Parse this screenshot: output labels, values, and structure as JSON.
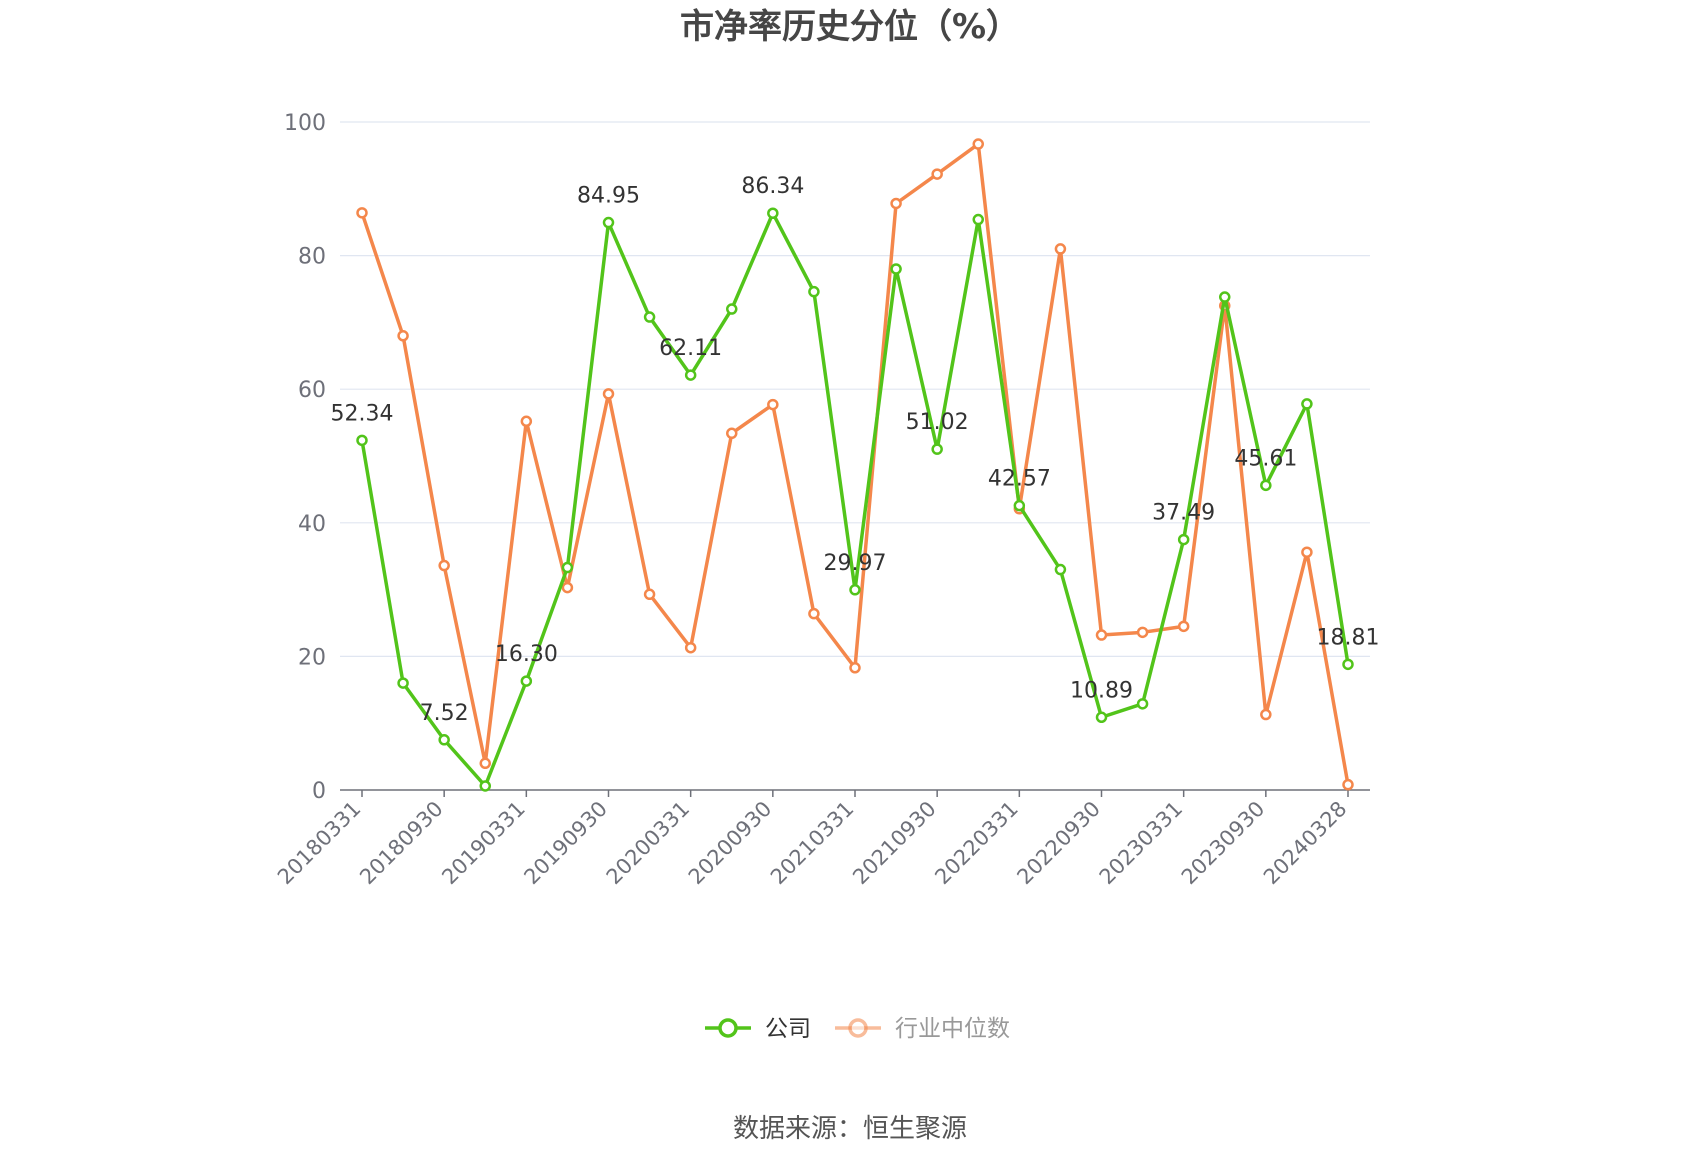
{
  "chart_data": {
    "type": "line",
    "title": "市净率历史分位（%）",
    "source": "数据来源：恒生聚源",
    "ylim": [
      0,
      100
    ],
    "yticks": [
      0,
      20,
      40,
      60,
      80,
      100
    ],
    "x": [
      "20180331",
      "20180630",
      "20180930",
      "20181231",
      "20190331",
      "20190630",
      "20190930",
      "20191231",
      "20200331",
      "20200630",
      "20200930",
      "20201231",
      "20210331",
      "20210630",
      "20210930",
      "20211231",
      "20220331",
      "20220630",
      "20220930",
      "20221231",
      "20230331",
      "20230630",
      "20230930",
      "20231231",
      "20240328"
    ],
    "xtick_labels": [
      "20180331",
      "20180930",
      "20190331",
      "20190930",
      "20200331",
      "20200930",
      "20210331",
      "20210930",
      "20220331",
      "20220930",
      "20230331",
      "20230930",
      "20240328"
    ],
    "grid": true,
    "legend_position": "bottom-center",
    "series": [
      {
        "name": "公司",
        "color": "#52c41a",
        "values": [
          52.34,
          16.0,
          7.52,
          0.6,
          16.3,
          33.3,
          84.95,
          70.8,
          62.11,
          72.0,
          86.34,
          74.6,
          29.97,
          78.0,
          51.02,
          85.4,
          42.57,
          33.0,
          10.89,
          12.9,
          37.49,
          73.8,
          45.61,
          57.8,
          18.81
        ],
        "labels": [
          "52.34",
          "",
          "7.52",
          "",
          "16.30",
          "",
          "84.95",
          "",
          "62.11",
          "",
          "86.34",
          "",
          "29.97",
          "",
          "51.02",
          "",
          "42.57",
          "",
          "10.89",
          "",
          "37.49",
          "",
          "45.61",
          "",
          "18.81"
        ]
      },
      {
        "name": "行业中位数",
        "color": "#f4874b",
        "values": [
          86.4,
          68.0,
          33.6,
          4.0,
          55.2,
          30.3,
          59.3,
          29.3,
          21.3,
          53.4,
          57.7,
          26.4,
          18.3,
          87.8,
          92.2,
          96.7,
          42.1,
          81.0,
          23.2,
          23.6,
          24.5,
          72.5,
          11.3,
          35.6,
          0.8
        ]
      }
    ]
  }
}
